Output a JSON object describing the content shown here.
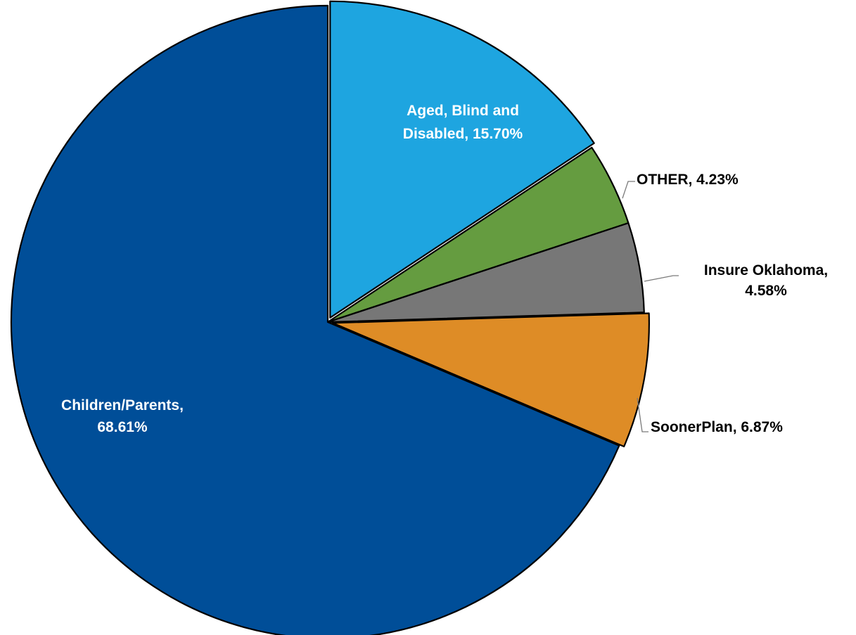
{
  "chart_data": {
    "type": "pie",
    "start_angle_deg": 0,
    "direction": "clockwise",
    "slices": [
      {
        "label": "Aged, Blind and Disabled",
        "value": 15.7,
        "display": "15.70%",
        "color": "#1ea5e0",
        "label_lines": [
          "Aged, Blind and",
          "Disabled, 15.70%"
        ],
        "label_position": "inside"
      },
      {
        "label": "OTHER",
        "value": 4.23,
        "display": "4.23%",
        "color": "#659c40",
        "label_lines": [
          "OTHER, 4.23%"
        ],
        "label_position": "outside"
      },
      {
        "label": "Insure Oklahoma",
        "value": 4.58,
        "display": "4.58%",
        "color": "#777777",
        "label_lines": [
          "Insure Oklahoma,",
          "4.58%"
        ],
        "label_position": "outside"
      },
      {
        "label": "SoonerPlan",
        "value": 6.87,
        "display": "6.87%",
        "color": "#de8c26",
        "label_lines": [
          "SoonerPlan, 6.87%"
        ],
        "label_position": "outside"
      },
      {
        "label": "Children/Parents",
        "value": 68.61,
        "display": "68.61%",
        "color": "#004e98",
        "label_lines": [
          "Children/Parents,",
          "68.61%"
        ],
        "label_position": "inside"
      }
    ],
    "exploded": [
      "Aged, Blind and Disabled",
      "SoonerPlan"
    ],
    "legend": "none",
    "title": ""
  }
}
